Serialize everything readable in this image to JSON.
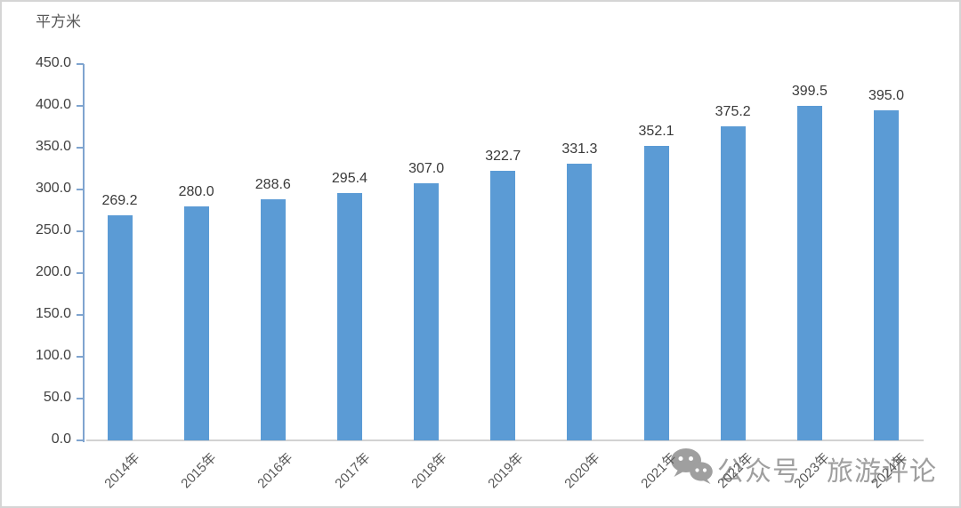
{
  "chart_data": {
    "type": "bar",
    "title": "",
    "xlabel": "",
    "ylabel": "平方米",
    "categories": [
      "2014年",
      "2015年",
      "2016年",
      "2017年",
      "2018年",
      "2019年",
      "2020年",
      "2021年",
      "2022年",
      "2023年",
      "2024年"
    ],
    "values": [
      269.2,
      280.0,
      288.6,
      295.4,
      307.0,
      322.7,
      331.3,
      352.1,
      375.2,
      399.5,
      395.0
    ],
    "ylim": [
      0,
      450
    ],
    "ytick_step": 50,
    "ytick_decimals": 1,
    "grid": false,
    "legend": "none",
    "bar_color": "#5b9bd5",
    "axis_color": "#7fa4cf",
    "baseline_color": "#d2d2d2",
    "value_label_color": "#3a3a3a",
    "tick_label_color": "#404040",
    "category_label_color": "#595959"
  },
  "watermark": {
    "icon": "wechat-icon",
    "prefix": "公众号",
    "name": "旅游评论",
    "color": "#9f9f9f"
  }
}
